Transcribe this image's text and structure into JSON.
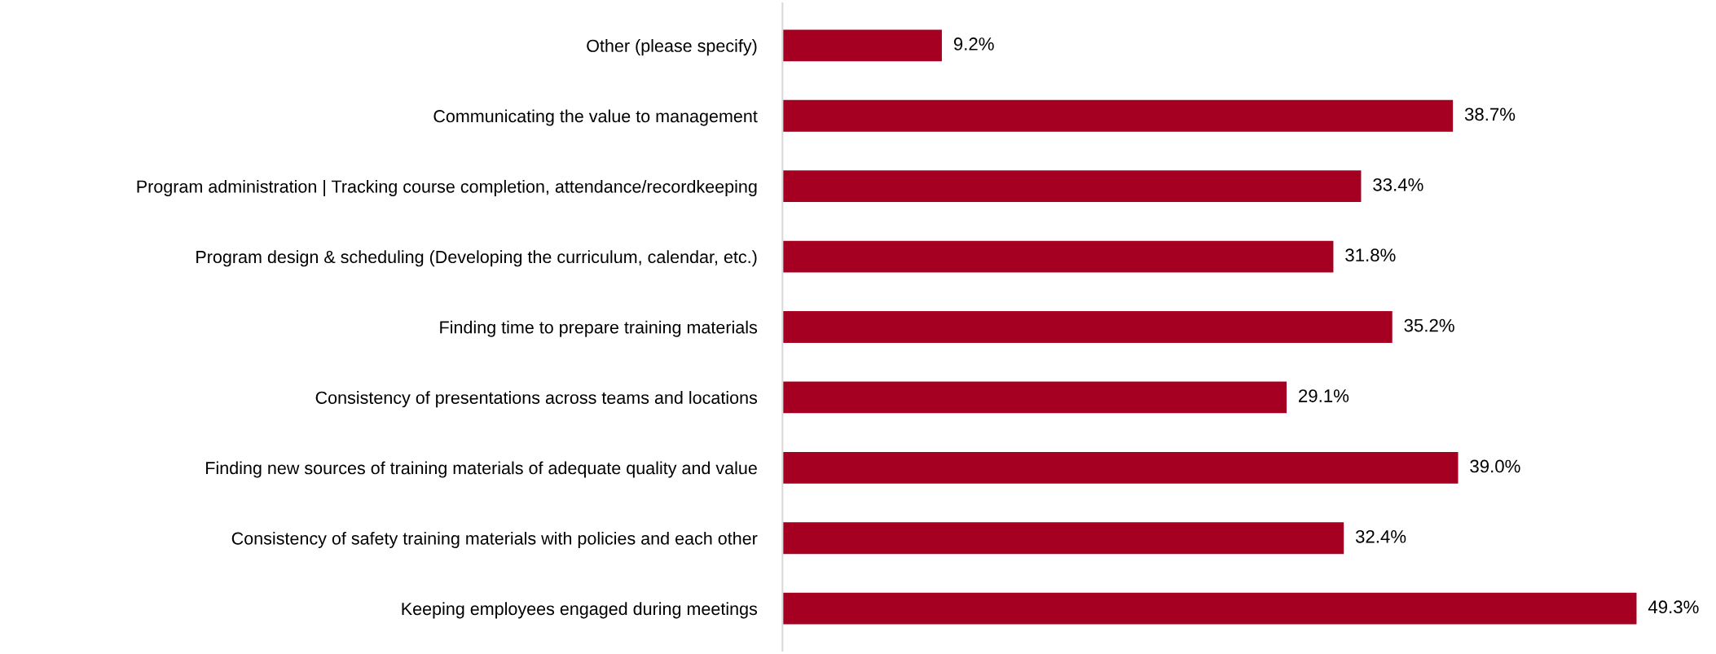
{
  "chart_data": {
    "type": "bar",
    "orientation": "horizontal",
    "data_labels": true,
    "grid": false,
    "legend": false,
    "tick_labels": "y",
    "categories": [
      "Other (please specify)",
      "Communicating the value to management",
      "Program administration | Tracking course completion, attendance/recordkeeping",
      "Program design & scheduling (Developing the curriculum, calendar, etc.)",
      "Finding time to prepare training materials",
      "Consistency of presentations across teams and locations",
      "Finding new sources of training materials of adequate quality and value",
      "Consistency of safety training materials with policies and each other",
      "Keeping employees engaged during meetings"
    ],
    "values": [
      9.2,
      38.7,
      33.4,
      31.8,
      35.2,
      29.1,
      39.0,
      32.4,
      49.3
    ],
    "value_labels": [
      "9.2%",
      "38.7%",
      "33.4%",
      "31.8%",
      "35.2%",
      "29.1%",
      "39.0%",
      "32.4%",
      "49.3%"
    ],
    "color": "#a50021"
  }
}
